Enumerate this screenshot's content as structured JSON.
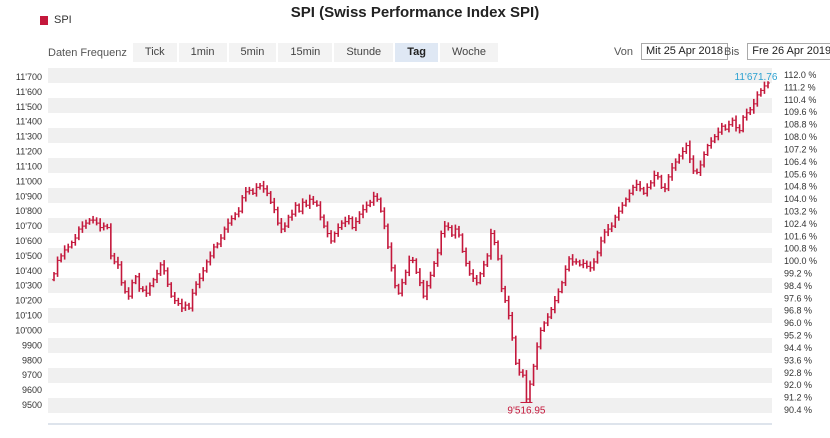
{
  "header": {
    "title": "SPI (Swiss Performance Index SPI)",
    "legend_label": "SPI",
    "series_color": "#c4183c"
  },
  "toolbar": {
    "frequency_label": "Daten Frequenz",
    "buttons": [
      "Tick",
      "1min",
      "5min",
      "15min",
      "Stunde",
      "Tag",
      "Woche"
    ],
    "active": "Tag"
  },
  "date_range": {
    "from_label": "Von",
    "from_value": "Mit 25 Apr 2018",
    "to_label": "Bis",
    "to_value": "Fre 26 Apr 2019"
  },
  "chart_data": {
    "type": "ohlc",
    "title": "SPI (Swiss Performance Index SPI)",
    "series_name": "SPI",
    "x_range": [
      "2018-04-25",
      "2019-04-26"
    ],
    "ylim": [
      9500,
      11700
    ],
    "y_ticks": [
      "9500",
      "9600",
      "9700",
      "9800",
      "9900",
      "10'000",
      "10'100",
      "10'200",
      "10'300",
      "10'400",
      "10'500",
      "10'600",
      "10'700",
      "10'800",
      "10'900",
      "11'000",
      "11'100",
      "11'200",
      "11'300",
      "11'400",
      "11'500",
      "11'600",
      "11'700"
    ],
    "y2_ticks": [
      "90.4 %",
      "91.2 %",
      "92.0 %",
      "92.8 %",
      "93.6 %",
      "94.4 %",
      "95.2 %",
      "96.0 %",
      "96.8 %",
      "97.6 %",
      "98.4 %",
      "99.2 %",
      "100.0 %",
      "100.8 %",
      "101.6 %",
      "102.4 %",
      "103.2 %",
      "104.0 %",
      "104.8 %",
      "105.6 %",
      "106.4 %",
      "107.2 %",
      "108.0 %",
      "108.8 %",
      "109.6 %",
      "110.4 %",
      "111.2 %",
      "112.0 %"
    ],
    "grid": true,
    "max_label": "11'671.76",
    "min_label": "9'516.95",
    "closes": [
      10380,
      10470,
      10500,
      10540,
      10560,
      10590,
      10620,
      10680,
      10700,
      10720,
      10740,
      10740,
      10720,
      10690,
      10700,
      10690,
      10500,
      10460,
      10440,
      10320,
      10260,
      10230,
      10320,
      10360,
      10280,
      10270,
      10250,
      10300,
      10340,
      10380,
      10440,
      10400,
      10310,
      10230,
      10200,
      10180,
      10150,
      10170,
      10150,
      10250,
      10310,
      10350,
      10400,
      10460,
      10500,
      10560,
      10580,
      10620,
      10680,
      10720,
      10750,
      10780,
      10800,
      10890,
      10930,
      10940,
      10920,
      10960,
      10970,
      10950,
      10920,
      10860,
      10810,
      10720,
      10680,
      10700,
      10760,
      10780,
      10840,
      10800,
      10860,
      10840,
      10880,
      10860,
      10840,
      10760,
      10700,
      10650,
      10600,
      10650,
      10690,
      10720,
      10730,
      10750,
      10690,
      10730,
      10780,
      10810,
      10840,
      10860,
      10900,
      10880,
      10800,
      10700,
      10560,
      10420,
      10300,
      10250,
      10320,
      10390,
      10470,
      10470,
      10390,
      10320,
      10230,
      10300,
      10370,
      10450,
      10520,
      10650,
      10700,
      10690,
      10640,
      10680,
      10640,
      10530,
      10450,
      10380,
      10350,
      10320,
      10380,
      10440,
      10500,
      10650,
      10590,
      10480,
      10280,
      10200,
      10100,
      9950,
      9780,
      9720,
      9700,
      9540,
      9640,
      9760,
      9890,
      10000,
      10050,
      10090,
      10140,
      10200,
      10260,
      10320,
      10410,
      10480,
      10460,
      10460,
      10440,
      10450,
      10430,
      10420,
      10460,
      10520,
      10600,
      10660,
      10680,
      10700,
      10760,
      10800,
      10840,
      10880,
      10920,
      10960,
      10980,
      10950,
      10920,
      10960,
      10990,
      11040,
      11030,
      10960,
      10950,
      11030,
      11090,
      11130,
      11170,
      11200,
      11240,
      11150,
      11070,
      11060,
      11110,
      11180,
      11240,
      11270,
      11300,
      11330,
      11370,
      11350,
      11380,
      11410,
      11360,
      11340,
      11430,
      11460,
      11480,
      11520,
      11580,
      11610,
      11640,
      11660
    ]
  }
}
